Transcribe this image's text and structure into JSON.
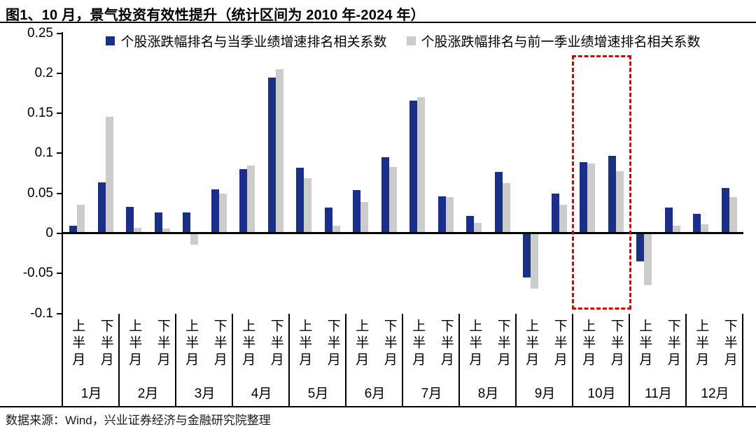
{
  "title": "图1、10 月，景气投资有效性提升（统计区间为 2010 年-2024 年）",
  "source_note": "数据来源：Wind，兴业证券经济与金融研究院整理",
  "colors": {
    "series_current": "#1a3088",
    "series_previous": "#cccccc",
    "highlight_red": "#d40000",
    "axis": "#000000"
  },
  "chart_data": {
    "type": "bar",
    "title": "图1、10 月，景气投资有效性提升（统计区间为 2010 年-2024 年）",
    "categories": [
      "1月",
      "2月",
      "3月",
      "4月",
      "5月",
      "6月",
      "7月",
      "8月",
      "9月",
      "10月",
      "11月",
      "12月"
    ],
    "sub_categories": [
      "上半月",
      "下半月"
    ],
    "series": [
      {
        "name": "个股涨跌幅排名与当季业绩增速排名相关系数",
        "color": "#1a3088",
        "values": [
          0.01,
          0.064,
          0.033,
          0.026,
          0.026,
          0.055,
          0.08,
          0.195,
          0.082,
          0.032,
          0.054,
          0.095,
          0.166,
          0.046,
          0.022,
          0.077,
          -0.055,
          0.05,
          0.089,
          0.097,
          -0.035,
          0.032,
          0.024,
          0.057
        ]
      },
      {
        "name": "个股涨跌幅排名与前一季业绩增速排名相关系数",
        "color": "#cccccc",
        "values": [
          0.036,
          0.146,
          0.007,
          0.006,
          -0.014,
          0.05,
          0.085,
          0.205,
          0.069,
          0.01,
          0.039,
          0.083,
          0.17,
          0.045,
          0.013,
          0.063,
          -0.069,
          0.036,
          0.087,
          0.078,
          -0.065,
          0.01,
          0.011,
          0.045
        ]
      }
    ],
    "ylim": [
      -0.1,
      0.25
    ],
    "yticks": [
      "0.25",
      "0.2",
      "0.15",
      "0.1",
      "0.05",
      "0",
      "-0.05",
      "-0.1"
    ],
    "grid": false,
    "legend_position": "top-center",
    "highlight": {
      "category": "10月",
      "style": "red-dashed-box",
      "color": "#d40000"
    }
  }
}
